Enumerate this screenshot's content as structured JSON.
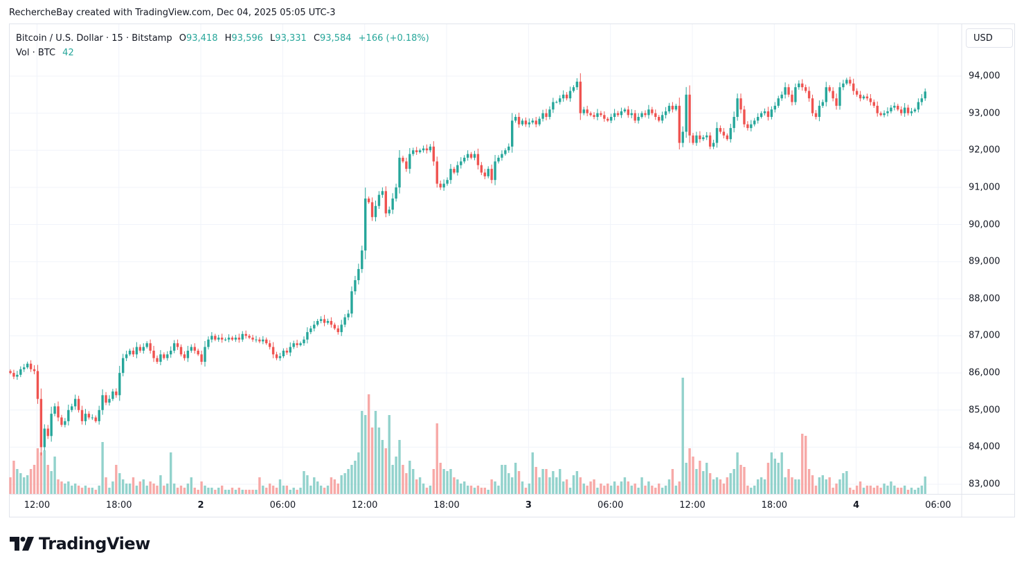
{
  "caption": "RechercheBay created with TradingView.com, Dec 04, 2025 05:05 UTC-3",
  "legend": {
    "symbol": "Bitcoin / U.S. Dollar · 15 · Bitstamp",
    "o_label": "O",
    "o": "93,418",
    "h_label": "H",
    "h": "93,596",
    "l_label": "L",
    "l": "93,331",
    "c_label": "C",
    "c": "93,584",
    "change": "+166 (+0.18%)",
    "vol_label": "Vol · BTC",
    "vol": "42"
  },
  "currency_button": "USD",
  "logo_text": "TradingView",
  "colors": {
    "up": "#26a69a",
    "down": "#ef5350",
    "up_vol": "#92d2cc",
    "down_vol": "#f7a9a7",
    "grid": "#f0f3fa"
  },
  "chart_data": {
    "type": "candlestick",
    "interval": "15",
    "ylim": [
      82800,
      94400
    ],
    "y_ticks": [
      "94,000",
      "93,000",
      "92,000",
      "91,000",
      "90,000",
      "89,000",
      "88,000",
      "87,000",
      "86,000",
      "85,000",
      "84,000",
      "83,000"
    ],
    "y_tick_values": [
      94000,
      93000,
      92000,
      91000,
      90000,
      89000,
      88000,
      87000,
      86000,
      85000,
      84000,
      83000
    ],
    "x_ticks": [
      {
        "label": "12:00",
        "index": 8,
        "bold": false
      },
      {
        "label": "18:00",
        "index": 32,
        "bold": false
      },
      {
        "label": "2",
        "index": 56,
        "bold": true
      },
      {
        "label": "06:00",
        "index": 80,
        "bold": false
      },
      {
        "label": "12:00",
        "index": 104,
        "bold": false
      },
      {
        "label": "18:00",
        "index": 128,
        "bold": false
      },
      {
        "label": "3",
        "index": 152,
        "bold": true
      },
      {
        "label": "06:00",
        "index": 176,
        "bold": false
      },
      {
        "label": "12:00",
        "index": 200,
        "bold": false
      },
      {
        "label": "18:00",
        "index": 224,
        "bold": false
      },
      {
        "label": "4",
        "index": 248,
        "bold": true
      },
      {
        "label": "06:00",
        "index": 272,
        "bold": false
      }
    ],
    "grid": true,
    "close": [
      86000,
      85900,
      85950,
      86100,
      86150,
      86250,
      86100,
      86050,
      85300,
      84000,
      84500,
      84300,
      84900,
      85100,
      84800,
      84600,
      84700,
      85000,
      85100,
      85300,
      85000,
      84700,
      84900,
      84800,
      84800,
      84700,
      85000,
      85400,
      85200,
      85300,
      85500,
      85400,
      86000,
      86400,
      86500,
      86600,
      86500,
      86700,
      86600,
      86700,
      86800,
      86600,
      86400,
      86300,
      86500,
      86400,
      86500,
      86600,
      86800,
      86700,
      86500,
      86400,
      86600,
      86700,
      86600,
      86500,
      86300,
      86700,
      86900,
      87000,
      86900,
      86950,
      86900,
      86900,
      86950,
      86900,
      86950,
      86900,
      87050,
      87000,
      86950,
      86900,
      86900,
      86850,
      86900,
      86800,
      86700,
      86500,
      86400,
      86450,
      86600,
      86550,
      86700,
      86800,
      86750,
      86800,
      86900,
      87100,
      87200,
      87300,
      87400,
      87450,
      87350,
      87400,
      87300,
      87200,
      87100,
      87300,
      87500,
      87600,
      88200,
      88500,
      88800,
      89300,
      90700,
      90600,
      90200,
      90500,
      90800,
      90900,
      90300,
      90400,
      90700,
      91000,
      91800,
      91700,
      91500,
      91900,
      92000,
      91950,
      92000,
      92050,
      92000,
      92100,
      91700,
      91100,
      91000,
      91100,
      91200,
      91500,
      91400,
      91600,
      91700,
      91800,
      91900,
      91800,
      91900,
      91600,
      91400,
      91300,
      91500,
      91200,
      91700,
      91800,
      91900,
      92000,
      92100,
      92800,
      92900,
      92700,
      92800,
      92700,
      92750,
      92800,
      92700,
      92850,
      93000,
      92900,
      93100,
      93300,
      93300,
      93400,
      93500,
      93400,
      93600,
      93700,
      93850,
      93000,
      93100,
      93000,
      92950,
      92900,
      93000,
      92950,
      92850,
      92800,
      92900,
      93000,
      92950,
      93050,
      93100,
      92950,
      93000,
      92800,
      92900,
      93000,
      92950,
      93100,
      93000,
      92900,
      92800,
      92950,
      93050,
      93200,
      93100,
      93200,
      92200,
      92500,
      93500,
      92400,
      92200,
      92400,
      92300,
      92350,
      92400,
      92100,
      92200,
      92600,
      92500,
      92400,
      92300,
      92600,
      92900,
      93400,
      93100,
      92700,
      92600,
      92700,
      92800,
      92900,
      93000,
      93050,
      92900,
      93100,
      93200,
      93400,
      93500,
      93700,
      93500,
      93300,
      93700,
      93800,
      93700,
      93600,
      93400,
      93000,
      92900,
      93200,
      93300,
      93700,
      93600,
      93400,
      93200,
      93700,
      93800,
      93900,
      93800,
      93600,
      93500,
      93400,
      93450,
      93400,
      93300,
      93200,
      93000,
      92950,
      93000,
      93050,
      93150,
      93200,
      93100,
      93000,
      93150,
      93000,
      93050,
      93100,
      93300,
      93400,
      93584
    ],
    "volume": [
      40,
      80,
      60,
      50,
      40,
      45,
      60,
      70,
      110,
      100,
      105,
      70,
      55,
      90,
      35,
      30,
      25,
      30,
      20,
      25,
      20,
      15,
      20,
      15,
      15,
      10,
      20,
      125,
      40,
      15,
      30,
      70,
      50,
      35,
      25,
      25,
      40,
      20,
      30,
      35,
      20,
      30,
      25,
      20,
      45,
      20,
      25,
      100,
      25,
      15,
      20,
      15,
      25,
      40,
      15,
      10,
      30,
      20,
      15,
      15,
      10,
      15,
      20,
      10,
      10,
      15,
      10,
      15,
      10,
      10,
      10,
      10,
      10,
      40,
      20,
      15,
      25,
      20,
      15,
      35,
      20,
      20,
      10,
      15,
      10,
      15,
      55,
      45,
      20,
      40,
      30,
      20,
      15,
      20,
      40,
      35,
      25,
      45,
      50,
      60,
      70,
      80,
      100,
      200,
      190,
      240,
      160,
      200,
      160,
      130,
      110,
      190,
      70,
      90,
      130,
      70,
      50,
      80,
      60,
      35,
      40,
      25,
      15,
      20,
      60,
      170,
      75,
      60,
      55,
      60,
      40,
      35,
      25,
      30,
      20,
      20,
      15,
      20,
      15,
      15,
      10,
      35,
      30,
      20,
      70,
      70,
      50,
      40,
      75,
      55,
      30,
      15,
      25,
      100,
      65,
      40,
      60,
      60,
      40,
      55,
      40,
      60,
      30,
      35,
      15,
      45,
      55,
      40,
      25,
      20,
      30,
      35,
      15,
      25,
      20,
      25,
      20,
      30,
      20,
      30,
      40,
      30,
      20,
      25,
      15,
      40,
      20,
      30,
      20,
      15,
      25,
      15,
      20,
      35,
      60,
      20,
      30,
      280,
      75,
      110,
      90,
      60,
      80,
      55,
      75,
      50,
      35,
      40,
      35,
      25,
      40,
      50,
      60,
      100,
      70,
      65,
      20,
      15,
      20,
      35,
      40,
      35,
      75,
      100,
      85,
      75,
      100,
      40,
      60,
      40,
      35,
      35,
      145,
      140,
      60,
      45,
      20,
      40,
      45,
      35,
      40,
      15,
      25,
      35,
      50,
      55,
      15,
      10,
      20,
      30,
      15,
      20,
      20,
      15,
      20,
      15,
      25,
      20,
      30,
      20,
      15,
      15,
      20,
      10,
      15,
      10,
      15,
      20,
      42
    ]
  }
}
